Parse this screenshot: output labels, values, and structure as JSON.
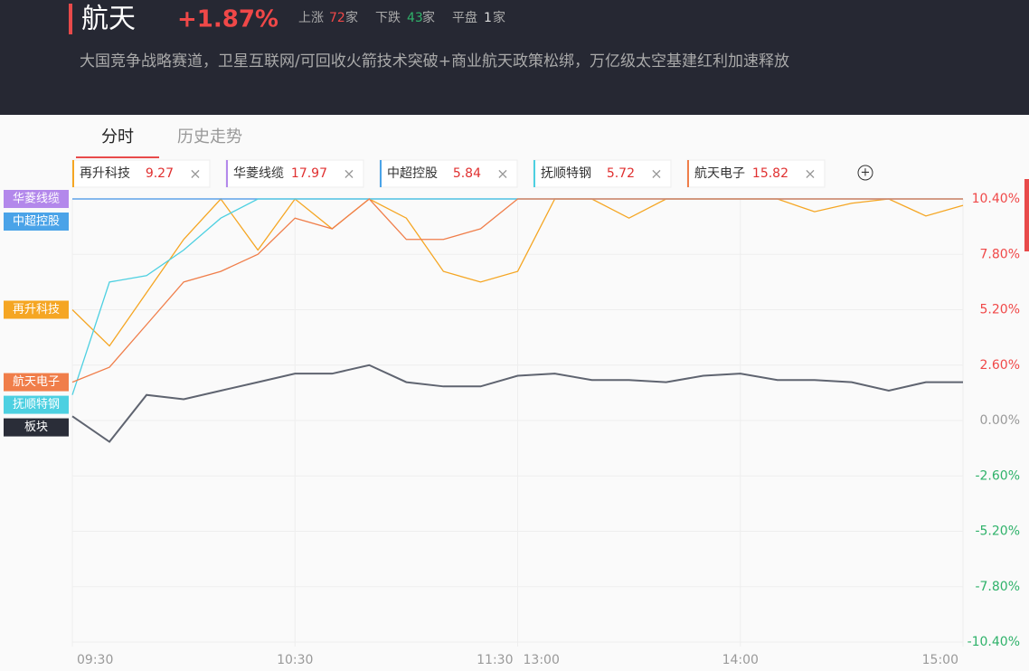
{
  "header": {
    "title": "航天",
    "change": "+1.87%",
    "up_label": "上涨",
    "up_count": "72",
    "down_label": "下跌",
    "down_count": "43",
    "flat_label": "平盘",
    "flat_count": "1",
    "unit": "家",
    "description": "大国竞争战略赛道，卫星互联网/可回收火箭技术突破+商业航天政策松绑，万亿级太空基建红利加速释放"
  },
  "tabs": [
    "分时",
    "历史走势"
  ],
  "chart_data": {
    "type": "line",
    "categories": [
      "09:30",
      null,
      null,
      null,
      null,
      null,
      "10:30",
      null,
      null,
      null,
      null,
      null,
      "11:30",
      null,
      null,
      null,
      null,
      null,
      "14:00",
      null,
      null,
      null,
      null,
      null,
      "15:00"
    ],
    "break_label": "13:00",
    "ylim": [
      -10.4,
      10.4
    ],
    "yticks": [
      {
        "value": 10.4,
        "label": "10.40%"
      },
      {
        "value": 7.8,
        "label": "7.80%"
      },
      {
        "value": 5.2,
        "label": "5.20%"
      },
      {
        "value": 2.6,
        "label": "2.60%"
      },
      {
        "value": 0,
        "label": "0.00%"
      },
      {
        "value": -2.6,
        "label": "-2.60%"
      },
      {
        "value": -5.2,
        "label": "-5.20%"
      },
      {
        "value": -7.8,
        "label": "-7.80%"
      },
      {
        "value": -10.4,
        "label": "-10.40%"
      }
    ],
    "grid": true,
    "series": [
      {
        "name": "再升科技",
        "price": "9.27",
        "color": "#f5a623",
        "values": [
          5.2,
          3.5,
          6,
          8.5,
          10.4,
          8,
          10.4,
          9,
          10.4,
          9.5,
          7,
          6.5,
          7,
          10.4,
          10.4,
          9.5,
          10.4,
          10.4,
          10.4,
          10.4,
          9.8,
          10.2,
          10.4,
          9.6,
          10.1
        ]
      },
      {
        "name": "华菱线缆",
        "price": "17.97",
        "color": "#b388eb",
        "values": [
          10.4,
          10.4,
          10.4,
          10.4,
          10.4,
          10.4,
          10.4,
          10.4,
          10.4,
          10.4,
          10.4,
          10.4,
          10.4,
          10.4,
          10.4,
          10.4,
          10.4,
          10.4,
          10.4,
          10.4,
          10.4,
          10.4,
          10.4,
          10.4,
          10.4
        ]
      },
      {
        "name": "中超控股",
        "price": "5.84",
        "color": "#4aa3e8",
        "values": [
          10.4,
          10.4,
          10.4,
          10.4,
          10.4,
          10.4,
          10.4,
          10.4,
          10.4,
          10.4,
          10.4,
          10.4,
          10.4,
          10.4,
          10.4,
          10.4,
          10.4,
          10.4,
          10.4,
          10.4,
          10.4,
          10.4,
          10.4,
          10.4,
          10.4
        ]
      },
      {
        "name": "抚顺特钢",
        "price": "5.72",
        "color": "#4dd0e1",
        "values": [
          1.2,
          6.5,
          6.8,
          8,
          9.5,
          10.4,
          10.4,
          10.4,
          10.4,
          10.4,
          10.4,
          10.4,
          10.4,
          10.4,
          10.4,
          10.4,
          10.4,
          10.4,
          10.4,
          10.4,
          10.4,
          10.4,
          10.4,
          10.4,
          10.4
        ]
      },
      {
        "name": "航天电子",
        "price": "15.82",
        "color": "#f07e4a",
        "values": [
          1.8,
          2.5,
          4.5,
          6.5,
          7,
          7.8,
          9.5,
          9,
          10.4,
          8.5,
          8.5,
          9,
          10.4,
          10.4,
          10.4,
          10.4,
          10.4,
          10.4,
          10.4,
          10.4,
          10.4,
          10.4,
          10.4,
          10.4,
          10.4
        ]
      },
      {
        "name": "板块",
        "color": "#5f6470",
        "label_color": "#2a2d38",
        "values": [
          0.2,
          -1,
          1.2,
          1,
          1.4,
          1.8,
          2.2,
          2.2,
          2.6,
          1.8,
          1.6,
          1.6,
          2.1,
          2.2,
          1.9,
          1.9,
          1.8,
          2.1,
          2.2,
          1.9,
          1.9,
          1.8,
          1.4,
          1.8,
          1.8
        ]
      }
    ]
  }
}
